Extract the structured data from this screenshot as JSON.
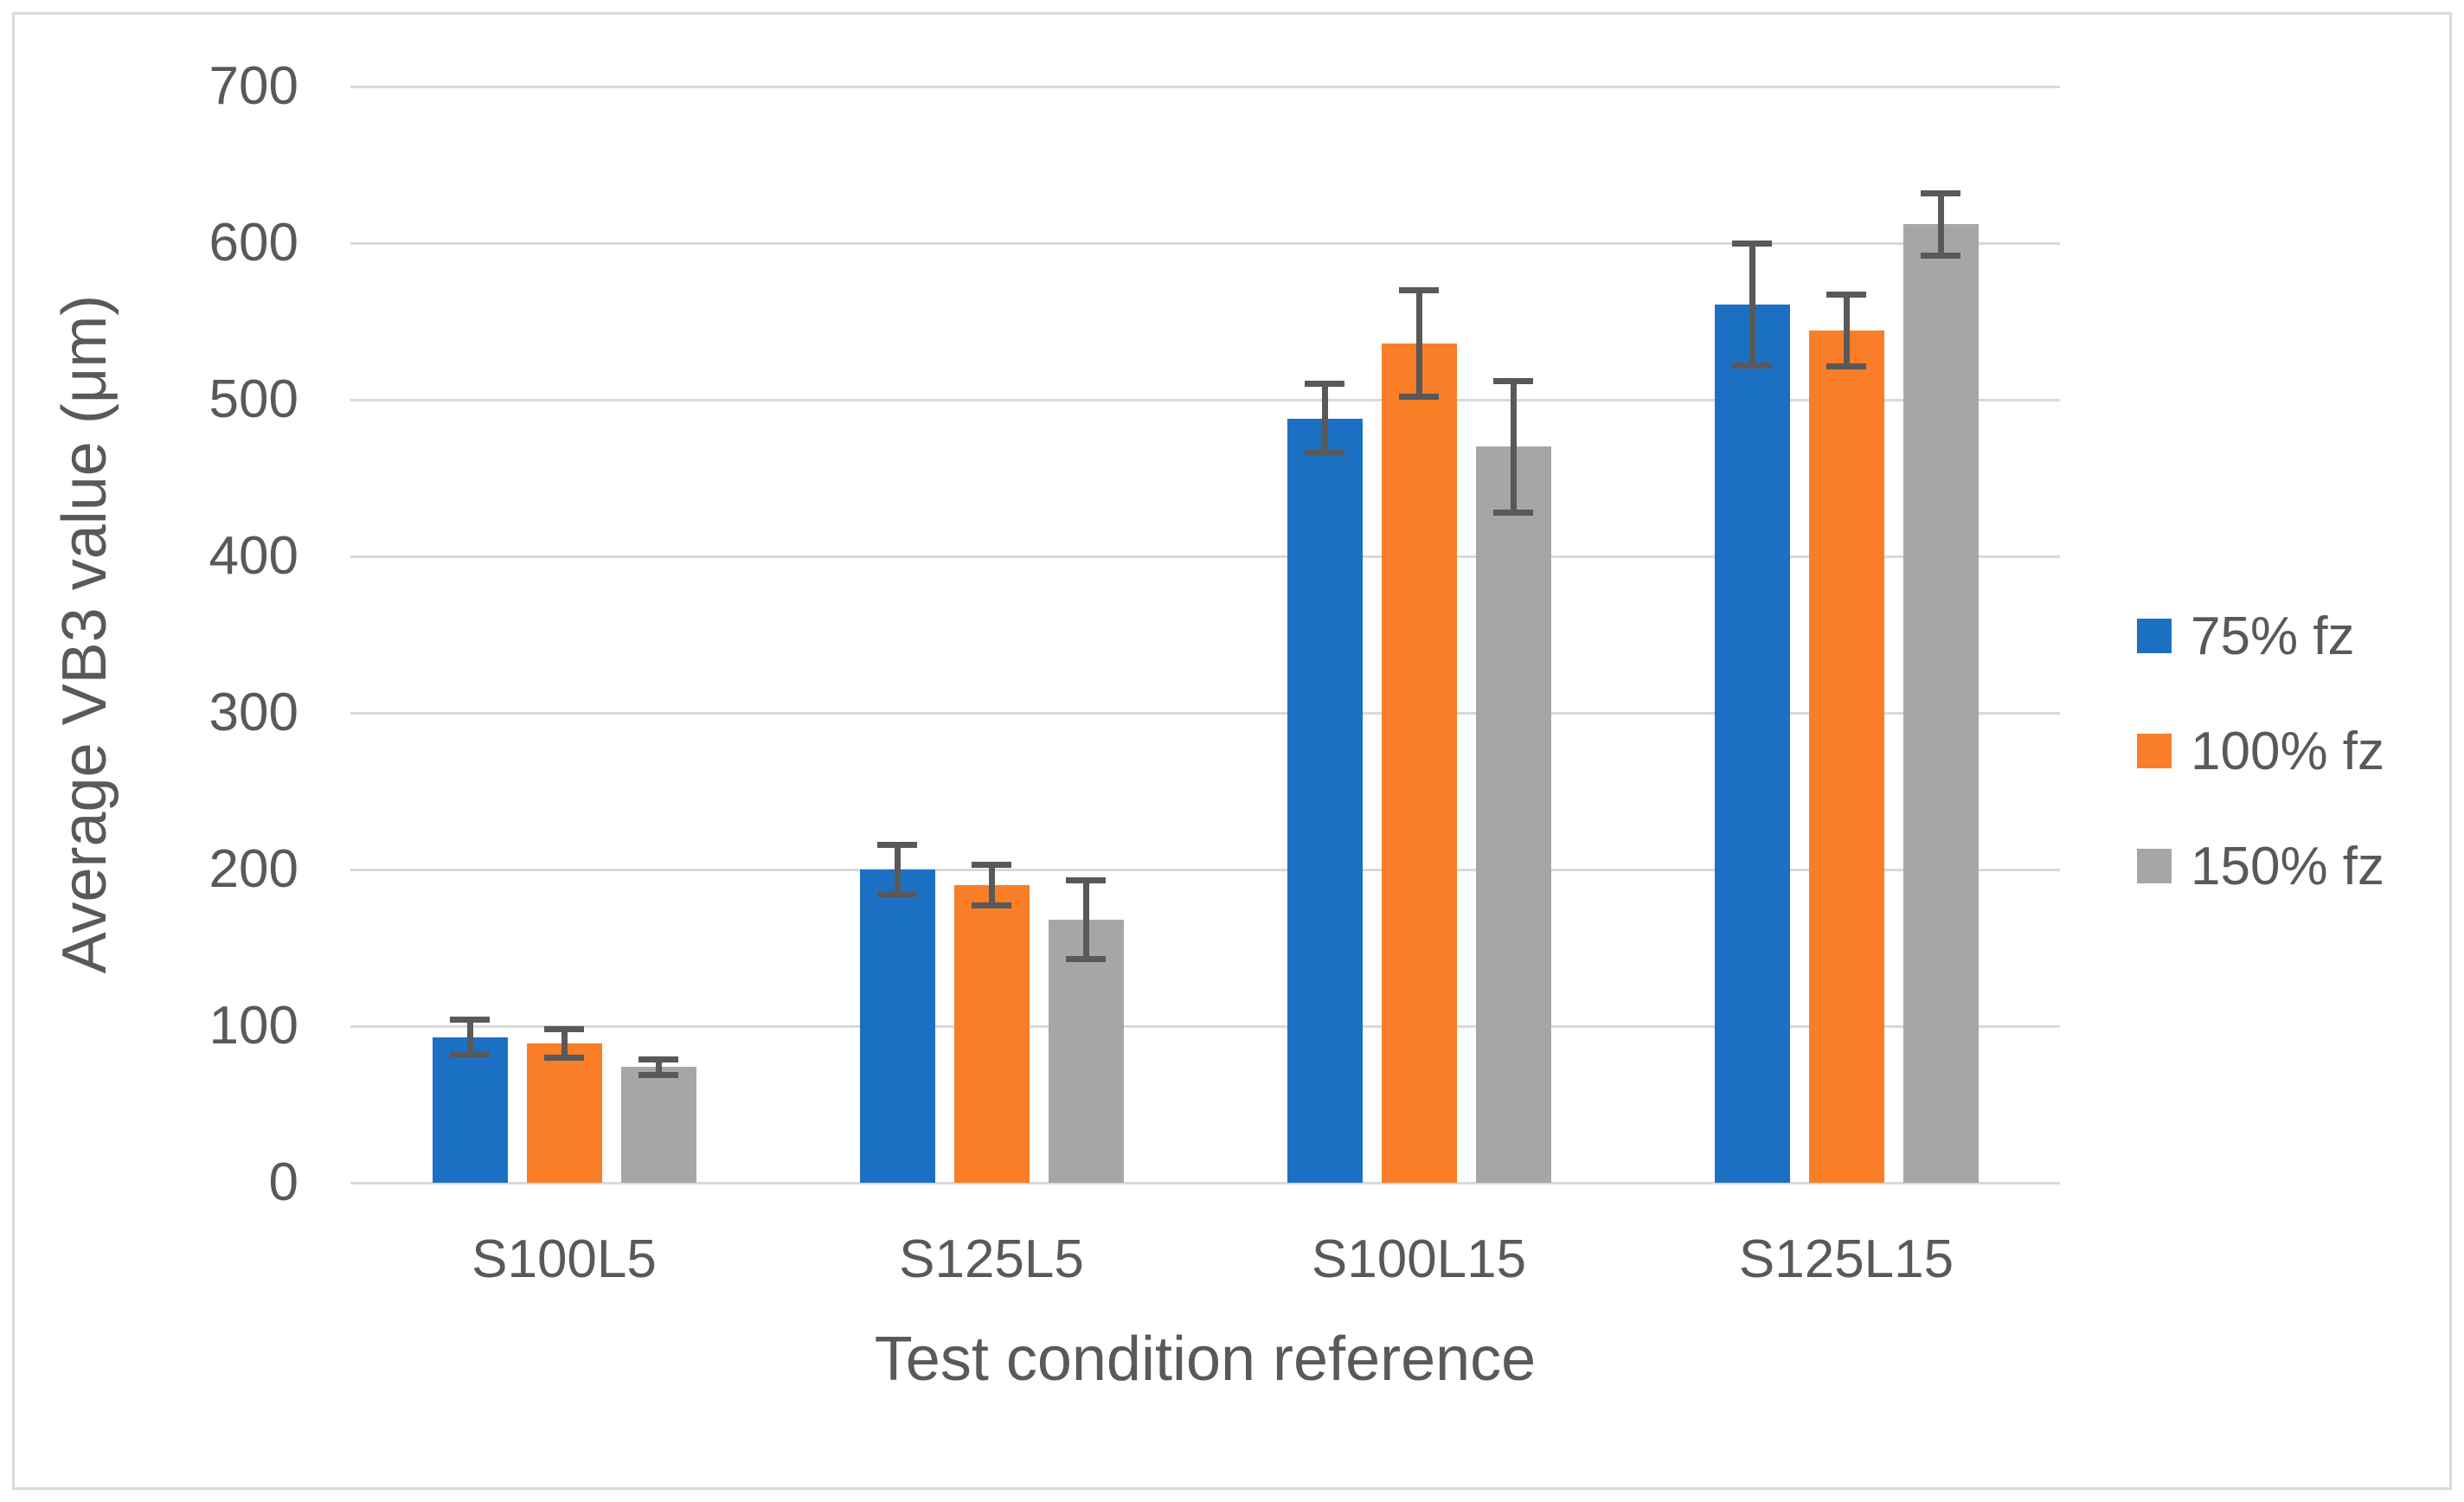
{
  "figure": {
    "background": "#FFFFFF",
    "border_color": "#D9D9D9"
  },
  "chart_data": {
    "type": "bar",
    "title": "",
    "xlabel": "Test condition reference",
    "ylabel": "Average VB3 value (μm)",
    "categories": [
      "S100L5",
      "S125L5",
      "S100L15",
      "S125L15"
    ],
    "series": [
      {
        "name": "75% fz",
        "color": "#1C70C4",
        "values": [
          93,
          200,
          488,
          561
        ],
        "errors": [
          11,
          16,
          22,
          39
        ]
      },
      {
        "name": "100% fz",
        "color": "#F97E27",
        "values": [
          89,
          190,
          536,
          544
        ],
        "errors": [
          9,
          13,
          34,
          23
        ]
      },
      {
        "name": "150% fz",
        "color": "#A6A6A6",
        "values": [
          74,
          168,
          470,
          612
        ],
        "errors": [
          5,
          25,
          42,
          20
        ]
      }
    ],
    "y_ticks": [
      0,
      100,
      200,
      300,
      400,
      500,
      600,
      700
    ],
    "ylim": [
      0,
      700
    ],
    "grid": true,
    "legend_position": "right",
    "gridline_color": "#D9D9D9",
    "error_bar_color": "#595959",
    "text_color": "#595959"
  }
}
